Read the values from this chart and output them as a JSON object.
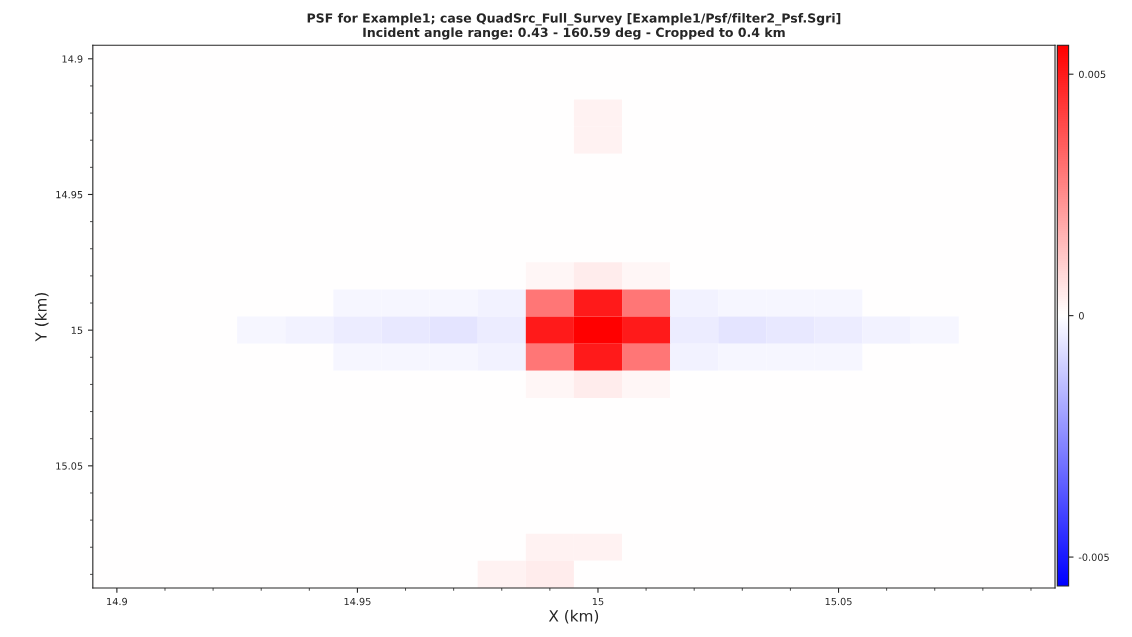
{
  "chart_data": {
    "type": "heatmap",
    "title": "PSF for Example1; case QuadSrc_Full_Survey [Example1/Psf/filter2_Psf.Sgri]",
    "subtitle": "Incident angle range: 0.43 - 160.59 deg - Cropped to 0.4 km",
    "xlabel": "X (km)",
    "ylabel": "Y (km)",
    "xlim": [
      14.895,
      15.095
    ],
    "ylim": [
      15.095,
      14.895
    ],
    "xticks": [
      14.9,
      14.95,
      15,
      15.05
    ],
    "yticks": [
      14.9,
      14.95,
      15,
      15.05
    ],
    "clim": [
      -0.0056,
      0.0056
    ],
    "cticks": [
      -0.005,
      0,
      0.005
    ],
    "colors": [
      "#0000ff",
      "#ffffff",
      "#ff0000"
    ],
    "grid": false,
    "cells": [
      [
        0,
        0,
        0,
        0,
        0,
        0,
        0,
        0,
        0,
        0,
        0,
        0,
        0,
        0,
        0,
        0,
        0,
        0,
        0,
        0
      ],
      [
        0,
        0,
        0,
        0,
        0,
        0,
        0,
        0,
        0,
        0,
        0,
        0,
        0,
        0,
        0,
        0,
        0,
        0,
        0,
        0
      ],
      [
        0,
        0,
        0,
        0,
        0,
        0,
        0,
        0,
        0,
        0,
        0.0003,
        0,
        0,
        0,
        0,
        0,
        0,
        0,
        0,
        0
      ],
      [
        0,
        0,
        0,
        0,
        0,
        0,
        0,
        0,
        0,
        0,
        0.0003,
        0,
        0,
        0,
        0,
        0,
        0,
        0,
        0,
        0
      ],
      [
        0,
        0,
        0,
        0,
        0,
        0,
        0,
        0,
        0,
        0,
        0,
        0,
        0,
        0,
        0,
        0,
        0,
        0,
        0,
        0
      ],
      [
        0,
        0,
        0,
        0,
        0,
        0,
        0,
        0,
        0,
        0,
        0,
        0,
        0,
        0,
        0,
        0,
        0,
        0,
        0,
        0
      ],
      [
        0,
        0,
        0,
        0,
        0,
        0,
        0,
        0,
        0,
        0,
        0,
        0,
        0,
        0,
        0,
        0,
        0,
        0,
        0,
        0
      ],
      [
        0,
        0,
        0,
        0,
        0,
        0,
        0,
        0,
        0,
        0,
        0,
        0,
        0,
        0,
        0,
        0,
        0,
        0,
        0,
        0
      ],
      [
        0,
        0,
        0,
        0,
        0,
        0,
        0,
        0,
        0,
        0.0002,
        0.0004,
        0.0002,
        0,
        0,
        0,
        0,
        0,
        0,
        0,
        0
      ],
      [
        0,
        0,
        0,
        0,
        0,
        -0.0002,
        -0.0002,
        -0.0002,
        -0.0003,
        0.003,
        0.005,
        0.003,
        -0.0003,
        -0.0002,
        -0.0002,
        -0.0002,
        0,
        0,
        0,
        0
      ],
      [
        0,
        0,
        0,
        -0.0002,
        -0.0003,
        -0.0004,
        -0.0005,
        -0.0006,
        -0.0004,
        0.005,
        0.0056,
        0.005,
        -0.0004,
        -0.0006,
        -0.0005,
        -0.0004,
        -0.0003,
        -0.0002,
        0,
        0
      ],
      [
        0,
        0,
        0,
        0,
        0,
        -0.0002,
        -0.0002,
        -0.0002,
        -0.0003,
        0.003,
        0.005,
        0.003,
        -0.0003,
        -0.0002,
        -0.0002,
        -0.0002,
        0,
        0,
        0,
        0
      ],
      [
        0,
        0,
        0,
        0,
        0,
        0,
        0,
        0,
        0,
        0.0002,
        0.0004,
        0.0002,
        0,
        0,
        0,
        0,
        0,
        0,
        0,
        0
      ],
      [
        0,
        0,
        0,
        0,
        0,
        0,
        0,
        0,
        0,
        0,
        0,
        0,
        0,
        0,
        0,
        0,
        0,
        0,
        0,
        0
      ],
      [
        0,
        0,
        0,
        0,
        0,
        0,
        0,
        0,
        0,
        0,
        0,
        0,
        0,
        0,
        0,
        0,
        0,
        0,
        0,
        0
      ],
      [
        0,
        0,
        0,
        0,
        0,
        0,
        0,
        0,
        0,
        0,
        0,
        0,
        0,
        0,
        0,
        0,
        0,
        0,
        0,
        0
      ],
      [
        0,
        0,
        0,
        0,
        0,
        0,
        0,
        0,
        0,
        0,
        0,
        0,
        0,
        0,
        0,
        0,
        0,
        0,
        0,
        0
      ],
      [
        0,
        0,
        0,
        0,
        0,
        0,
        0,
        0,
        0,
        0,
        0,
        0,
        0,
        0,
        0,
        0,
        0,
        0,
        0,
        0
      ],
      [
        0,
        0,
        0,
        0,
        0,
        0,
        0,
        0,
        0,
        0.0003,
        0.0003,
        0,
        0,
        0,
        0,
        0,
        0,
        0,
        0,
        0
      ],
      [
        0,
        0,
        0,
        0,
        0,
        0,
        0,
        0,
        0.0003,
        0.0004,
        0,
        0,
        0,
        0,
        0,
        0,
        0,
        0,
        0,
        0
      ]
    ]
  }
}
